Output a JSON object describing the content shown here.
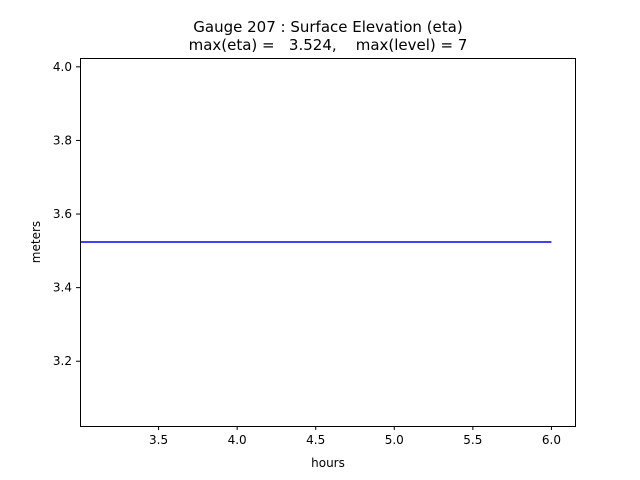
{
  "chart_data": {
    "type": "line",
    "title": "Gauge 207 : Surface Elevation (eta)",
    "subtitle": "max(eta) =   3.524,    max(level) = 7",
    "xlabel": "hours",
    "ylabel": "meters",
    "xlim": [
      3.0,
      6.15
    ],
    "ylim": [
      3.024,
      4.024
    ],
    "xticks": [
      3.5,
      4.0,
      4.5,
      5.0,
      5.5,
      6.0
    ],
    "xtick_labels": [
      "3.5",
      "4.0",
      "4.5",
      "5.0",
      "5.5",
      "6.0"
    ],
    "yticks": [
      3.2,
      3.4,
      3.6,
      3.8,
      4.0
    ],
    "ytick_labels": [
      "3.2",
      "3.4",
      "3.6",
      "3.8",
      "4.0"
    ],
    "grid": false,
    "series": [
      {
        "color": "#0000ff",
        "x": [
          3.0,
          6.0
        ],
        "y": [
          3.524,
          3.524
        ]
      }
    ]
  }
}
